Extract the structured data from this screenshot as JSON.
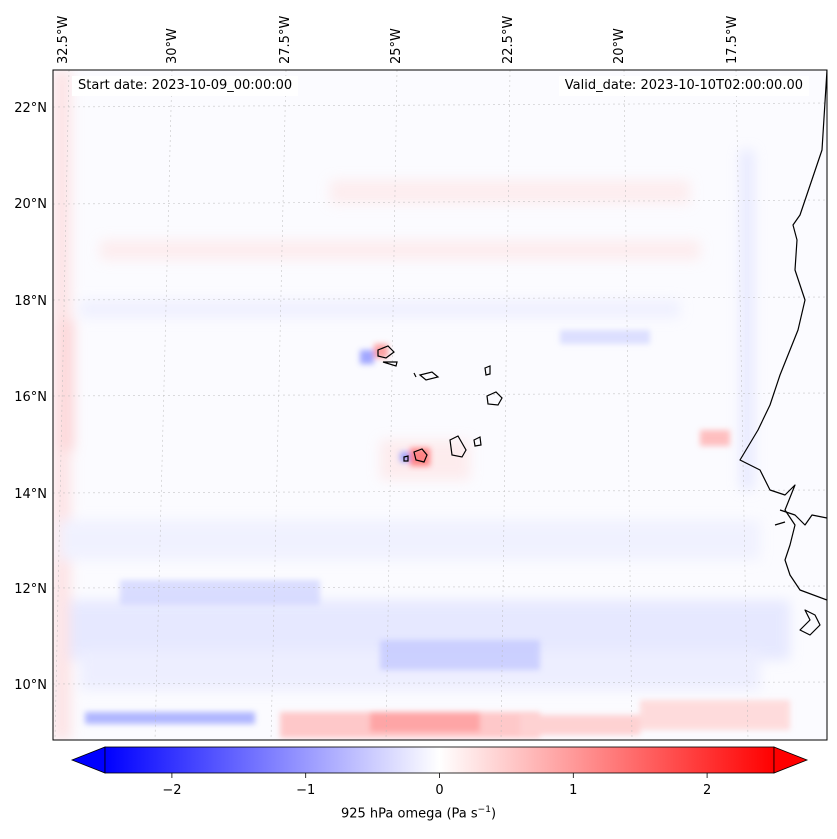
{
  "map": {
    "start_date": "Start date: 2023-10-09_00:00:00",
    "valid_date": "Valid_date: 2023-10-10T02:00:00.00",
    "longitude_labels": [
      "32.5°W",
      "30°W",
      "27.5°W",
      "25°W",
      "22.5°W",
      "20°W",
      "17.5°W"
    ],
    "latitude_labels": [
      "22°N",
      "20°N",
      "18°N",
      "16°N",
      "14°N",
      "12°N",
      "10°N"
    ],
    "gridlines": true,
    "field_colors": {
      "negative": "#0000ff",
      "zero": "#ffffff",
      "positive": "#ff0000"
    }
  },
  "colorbar": {
    "label_main": "925 hPa omega (Pa s",
    "label_exp": "−1",
    "label_end": ")",
    "ticks": [
      "−2",
      "−1",
      "0",
      "1",
      "2"
    ],
    "tick_values": [
      -2,
      -1,
      0,
      1,
      2
    ],
    "range": [
      -2.5,
      2.5
    ],
    "extend": "both"
  }
}
